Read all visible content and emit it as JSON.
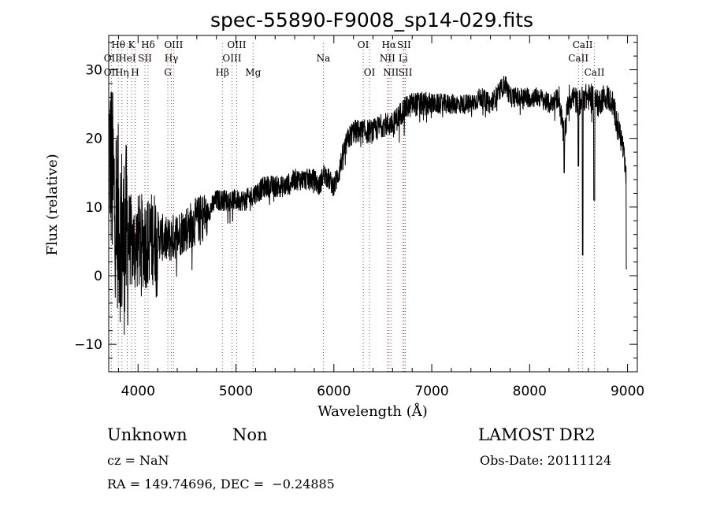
{
  "chart_data": {
    "type": "line",
    "title": "spec-55890-F9008_sp14-029.fits",
    "xlabel": "Wavelength (Å)",
    "ylabel": "Flux (relative)",
    "xlim": [
      3700,
      9100
    ],
    "ylim": [
      -14,
      35
    ],
    "xticks": [
      4000,
      5000,
      6000,
      7000,
      8000,
      9000
    ],
    "yticks": [
      -10,
      0,
      10,
      20,
      30
    ],
    "xtick_labels": [
      "4000",
      "5000",
      "6000",
      "7000",
      "8000",
      "9000"
    ],
    "ytick_labels": [
      "−10",
      "0",
      "10",
      "20",
      "30"
    ],
    "grid": false,
    "legend": "none",
    "line_color": "#000000",
    "marker_color": "#cc3333",
    "spectrum": {
      "x": [
        3700,
        3750,
        3800,
        3850,
        3900,
        3950,
        4000,
        4100,
        4200,
        4300,
        4400,
        4500,
        4600,
        4700,
        4800,
        4900,
        5000,
        5100,
        5200,
        5300,
        5400,
        5500,
        5600,
        5700,
        5800,
        5850,
        5900,
        5950,
        6000,
        6050,
        6100,
        6150,
        6200,
        6300,
        6400,
        6500,
        6600,
        6700,
        6800,
        6900,
        7000,
        7100,
        7200,
        7300,
        7400,
        7500,
        7600,
        7700,
        7750,
        7800,
        7900,
        8000,
        8100,
        8200,
        8300,
        8350,
        8400,
        8450,
        8500,
        8550,
        8600,
        8650,
        8700,
        8750,
        8800,
        8850,
        8900,
        8950,
        9000
      ],
      "y": [
        20,
        12,
        8,
        5,
        6,
        4,
        5,
        5,
        6,
        5,
        6,
        7,
        8,
        9,
        11,
        11,
        11,
        11,
        12,
        13,
        13,
        13,
        14,
        14,
        14,
        13,
        15,
        14,
        13,
        15,
        18,
        20,
        21,
        21,
        21,
        22,
        22,
        24,
        25,
        25,
        25,
        25,
        25,
        25,
        25,
        26,
        25,
        27,
        28,
        26,
        26,
        26,
        26,
        25,
        26,
        20,
        26,
        26,
        25,
        26,
        26,
        26,
        25,
        26,
        26,
        25,
        22,
        19,
        12
      ]
    },
    "lines_top": [
      {
        "label": "Hθ",
        "x": 3798,
        "row": 0
      },
      {
        "label": "K",
        "x": 3934,
        "row": 0
      },
      {
        "label": "Hδ",
        "x": 4102,
        "row": 0
      },
      {
        "label": "OIII",
        "x": 4363,
        "row": 0
      },
      {
        "label": "OIII",
        "x": 5007,
        "row": 0
      },
      {
        "label": "OI",
        "x": 6300,
        "row": 0
      },
      {
        "label": "Hα",
        "x": 6563,
        "row": 0
      },
      {
        "label": "SII",
        "x": 6717,
        "row": 0
      },
      {
        "label": "CaII",
        "x": 8542,
        "row": 0
      },
      {
        "label": "OII",
        "x": 3727,
        "row": 1
      },
      {
        "label": "HeI",
        "x": 3889,
        "row": 1
      },
      {
        "label": "SII",
        "x": 4070,
        "row": 1
      },
      {
        "label": "Hγ",
        "x": 4340,
        "row": 1
      },
      {
        "label": "OIII",
        "x": 4959,
        "row": 1
      },
      {
        "label": "Na",
        "x": 5893,
        "row": 1
      },
      {
        "label": "NII",
        "x": 6548,
        "row": 1
      },
      {
        "label": "Li",
        "x": 6708,
        "row": 1
      },
      {
        "label": "CaII",
        "x": 8498,
        "row": 1
      }
    ],
    "lines_bottom": [
      {
        "label": "OII",
        "x": 3727
      },
      {
        "label": "Hη",
        "x": 3835
      },
      {
        "label": "H",
        "x": 3969
      },
      {
        "label": "G",
        "x": 4304
      },
      {
        "label": "Hβ",
        "x": 4861
      },
      {
        "label": "Mg",
        "x": 5175
      },
      {
        "label": "OI",
        "x": 6364
      },
      {
        "label": "NII",
        "x": 6583
      },
      {
        "label": "SII",
        "x": 6731
      },
      {
        "label": "CaII",
        "x": 8662
      }
    ]
  },
  "info": {
    "class_name": "Unknown",
    "subclass": "Non",
    "survey": "LAMOST DR2",
    "cz": "cz = NaN",
    "obs_date": "Obs-Date: 20111124",
    "coords": "RA = 149.74696, DEC =  −0.24885"
  }
}
